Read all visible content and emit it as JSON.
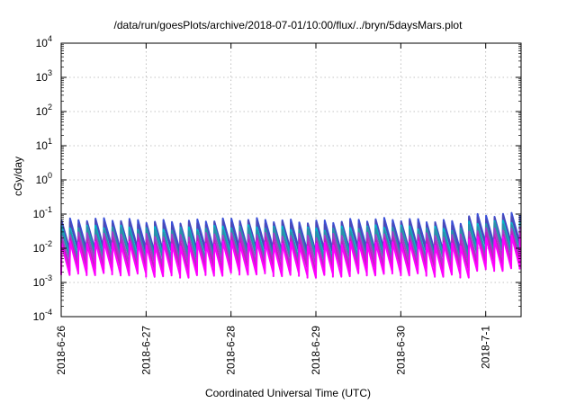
{
  "chart_data": {
    "type": "line",
    "title": "/data/run/goesPlots/archive/2018-07-01/10:00/flux/../bryn/5daysMars.plot",
    "xlabel": "Coordinated Universal Time (UTC)",
    "ylabel": "cGy/day",
    "yscale": "log",
    "ylim": [
      0.0001,
      10000
    ],
    "xlim": [
      "2018-06-26 00:00",
      "2018-07-01 10:00"
    ],
    "grid": true,
    "legend": "none",
    "y_ticks": [
      {
        "mantissa": "10",
        "exp": "-4",
        "value": 0.0001
      },
      {
        "mantissa": "10",
        "exp": "-3",
        "value": 0.001
      },
      {
        "mantissa": "10",
        "exp": "-2",
        "value": 0.01
      },
      {
        "mantissa": "10",
        "exp": "-1",
        "value": 0.1
      },
      {
        "mantissa": "10",
        "exp": "0",
        "value": 1
      },
      {
        "mantissa": "10",
        "exp": "1",
        "value": 10
      },
      {
        "mantissa": "10",
        "exp": "2",
        "value": 100
      },
      {
        "mantissa": "10",
        "exp": "3",
        "value": 1000
      },
      {
        "mantissa": "10",
        "exp": "4",
        "value": 10000
      }
    ],
    "x_ticks": [
      "2018-6-26",
      "2018-6-27",
      "2018-6-28",
      "2018-6-29",
      "2018-6-30",
      "2018-7-1"
    ],
    "x_tick_days": [
      0,
      1,
      2,
      3,
      4,
      5
    ],
    "x_range_days": [
      0,
      5.4167
    ],
    "sawtooth_cycles_per_day": 10,
    "series": [
      {
        "color": "#3b50d8",
        "peak": 0.065,
        "trough": 0.009
      },
      {
        "color": "#4a4ab8",
        "peak": 0.055,
        "trough": 0.008
      },
      {
        "color": "#00b8c8",
        "peak": 0.04,
        "trough": 0.0055
      },
      {
        "color": "#2c8fa8",
        "peak": 0.035,
        "trough": 0.005
      },
      {
        "color": "#a040c8",
        "peak": 0.025,
        "trough": 0.0035
      },
      {
        "color": "#c020c0",
        "peak": 0.018,
        "trough": 0.0025
      },
      {
        "color": "#ff00ff",
        "peak": 0.014,
        "trough": 0.0017
      }
    ],
    "enhancement": {
      "start_day": 4.72,
      "factor": 1.45
    }
  }
}
